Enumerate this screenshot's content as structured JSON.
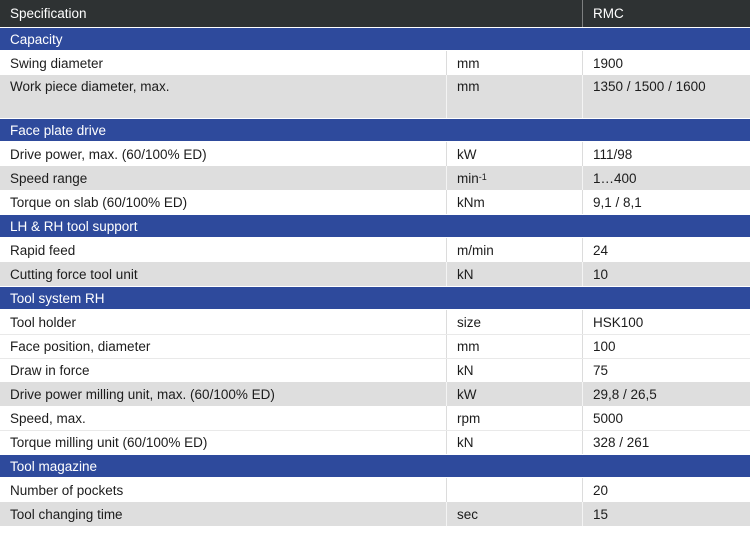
{
  "table": {
    "header": {
      "col1": "Specification",
      "col2": "RMC"
    },
    "colors": {
      "header_bg": "#2e3233",
      "header_text": "#ffffff",
      "section_bg": "#2e4a9c",
      "section_text": "#ffffff",
      "row_gray": "#dedede",
      "row_white": "#ffffff",
      "text": "#1c1c1c"
    },
    "sections": [
      {
        "title": "Capacity",
        "rows": [
          {
            "label": "Swing diameter",
            "unit": "mm",
            "value": "1900",
            "shade": "white",
            "tall": false
          },
          {
            "label": "Work piece diameter, max.",
            "unit": "mm",
            "value": "1350 / 1500 / 1600",
            "shade": "gray",
            "tall": true
          }
        ]
      },
      {
        "title": "Face plate drive",
        "rows": [
          {
            "label": "Drive power, max. (60/100% ED)",
            "unit": "kW",
            "value": "111/98",
            "shade": "white",
            "tall": false
          },
          {
            "label": "Speed range",
            "unit": "min",
            "unit_sup": "-1",
            "value": "1…400",
            "shade": "gray",
            "tall": false
          },
          {
            "label": "Torque on slab (60/100% ED)",
            "unit": "kNm",
            "value": "9,1 / 8,1",
            "shade": "white",
            "tall": false
          }
        ]
      },
      {
        "title": "LH & RH tool support",
        "rows": [
          {
            "label": "Rapid feed",
            "unit": "m/min",
            "value": "24",
            "shade": "white",
            "tall": false
          },
          {
            "label": "Cutting force tool unit",
            "unit": "kN",
            "value": "10",
            "shade": "gray",
            "tall": false
          }
        ]
      },
      {
        "title": "Tool system RH",
        "rows": [
          {
            "label": "Tool holder",
            "unit": "size",
            "value": "HSK100",
            "shade": "white",
            "tall": false
          },
          {
            "label": "Face position, diameter",
            "unit": "mm",
            "value": "100",
            "shade": "white",
            "tall": false
          },
          {
            "label": "Draw in force",
            "unit": "kN",
            "value": "75",
            "shade": "white",
            "tall": false
          },
          {
            "label": "Drive power milling unit, max. (60/100% ED)",
            "unit": "kW",
            "value": "29,8 / 26,5",
            "shade": "gray",
            "tall": false
          },
          {
            "label": "Speed, max.",
            "unit": "rpm",
            "value": "5000",
            "shade": "white",
            "tall": false
          },
          {
            "label": "Torque milling unit (60/100% ED)",
            "unit": "kN",
            "value": "328 / 261",
            "shade": "white",
            "tall": false
          }
        ]
      },
      {
        "title": "Tool magazine",
        "rows": [
          {
            "label": "Number of pockets",
            "unit": "",
            "value": "20",
            "shade": "white",
            "tall": false
          },
          {
            "label": "Tool changing time",
            "unit": "sec",
            "value": "15",
            "shade": "gray",
            "tall": false
          }
        ]
      }
    ]
  }
}
